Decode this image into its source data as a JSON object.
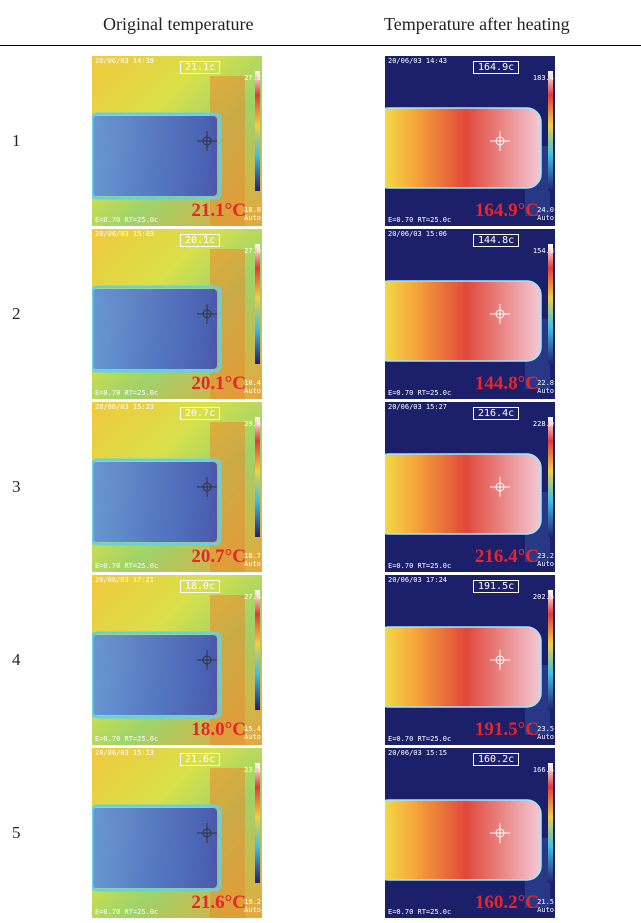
{
  "table": {
    "header": {
      "original": "Original temperature",
      "heated": "Temperature after heating"
    },
    "rows": [
      {
        "number": "1",
        "original": {
          "timestamp": "20/06/03 14:39",
          "spot": "21.1c",
          "scale_max": "27.2",
          "scale_min": "18.8",
          "scale_mode": "Auto",
          "settings": "E=0.70 RT=25.0c",
          "label": "21.1°C"
        },
        "heated": {
          "timestamp": "20/06/03 14:43",
          "spot": "164.9c",
          "scale_max": "183.4",
          "scale_min": "24.0",
          "scale_mode": "Auto",
          "settings": "E=0.70 RT=25.0c",
          "label": "164.9°C"
        }
      },
      {
        "number": "2",
        "original": {
          "timestamp": "20/06/03 15:03",
          "spot": "20.1c",
          "scale_max": "27.0",
          "scale_min": "18.4",
          "scale_mode": "Auto",
          "settings": "E=0.70 RT=25.0c",
          "label": "20.1°C"
        },
        "heated": {
          "timestamp": "20/06/03 15:06",
          "spot": "144.8c",
          "scale_max": "154.8",
          "scale_min": "22.8",
          "scale_mode": "Auto",
          "settings": "E=0.70 RT=25.0c",
          "label": "144.8°C"
        }
      },
      {
        "number": "3",
        "original": {
          "timestamp": "20/06/03 15:23",
          "spot": "20.7c",
          "scale_max": "29.0",
          "scale_min": "18.7",
          "scale_mode": "Auto",
          "settings": "E=0.70 RT=25.0c",
          "label": "20.7°C"
        },
        "heated": {
          "timestamp": "20/06/03 15:27",
          "spot": "216.4c",
          "scale_max": "228.0",
          "scale_min": "23.2",
          "scale_mode": "Auto",
          "settings": "E=0.70 RT=25.0c",
          "label": "216.4°C"
        }
      },
      {
        "number": "4",
        "original": {
          "timestamp": "20/06/03 17:21",
          "spot": "18.0c",
          "scale_max": "27.6",
          "scale_min": "15.4",
          "scale_mode": "Auto",
          "settings": "E=0.70 RT=25.0c",
          "label": "18.0°C"
        },
        "heated": {
          "timestamp": "20/06/03 17:24",
          "spot": "191.5c",
          "scale_max": "202.6",
          "scale_min": "23.5",
          "scale_mode": "Auto",
          "settings": "E=0.70 RT=25.0c",
          "label": "191.5°C"
        }
      },
      {
        "number": "5",
        "original": {
          "timestamp": "20/06/03 15:13",
          "spot": "21.6c",
          "scale_max": "23.3",
          "scale_min": "19.2",
          "scale_mode": "Auto",
          "settings": "E=0.70 RT=25.0c",
          "label": "21.6°C"
        },
        "heated": {
          "timestamp": "20/06/03 15:15",
          "spot": "160.2c",
          "scale_max": "166.4",
          "scale_min": "21.5",
          "scale_mode": "Auto",
          "settings": "E=0.70 RT=25.0c",
          "label": "160.2°C"
        }
      }
    ]
  }
}
